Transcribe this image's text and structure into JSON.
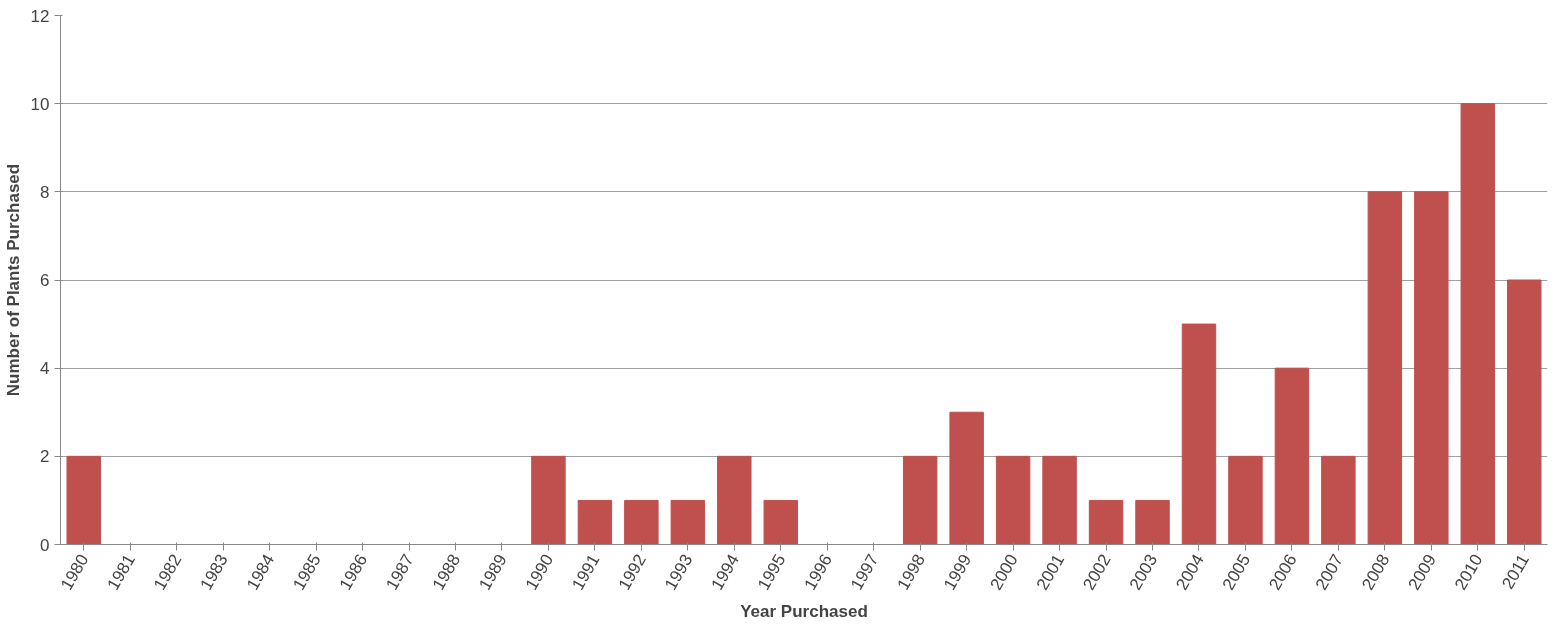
{
  "chart_data": {
    "type": "bar",
    "xlabel": "Year Purchased",
    "ylabel": "Number of Plants Purchased",
    "categories": [
      "1980",
      "1981",
      "1982",
      "1983",
      "1984",
      "1985",
      "1986",
      "1987",
      "1988",
      "1989",
      "1990",
      "1991",
      "1992",
      "1993",
      "1994",
      "1995",
      "1996",
      "1997",
      "1998",
      "1999",
      "2000",
      "2001",
      "2002",
      "2003",
      "2004",
      "2005",
      "2006",
      "2007",
      "2008",
      "2009",
      "2010",
      "2011"
    ],
    "values": [
      2,
      0,
      0,
      0,
      0,
      0,
      0,
      0,
      0,
      0,
      2,
      1,
      1,
      1,
      2,
      1,
      0,
      0,
      2,
      3,
      2,
      2,
      1,
      1,
      5,
      2,
      4,
      2,
      8,
      8,
      10,
      6
    ],
    "color": "#c0504d",
    "ylim": [
      0,
      12
    ],
    "yticks": [
      0,
      2,
      4,
      6,
      8,
      10,
      12
    ],
    "grid": "y"
  }
}
